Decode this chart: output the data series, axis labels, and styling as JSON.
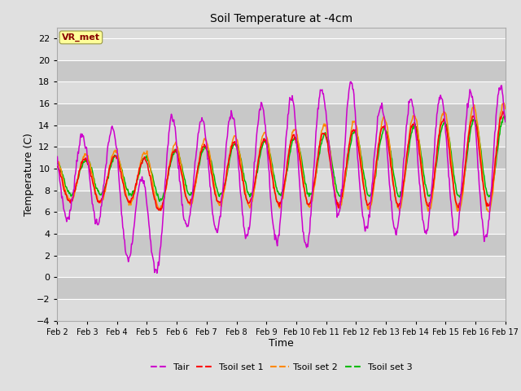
{
  "title": "Soil Temperature at -4cm",
  "xlabel": "Time",
  "ylabel": "Temperature (C)",
  "ylim": [
    -4,
    23
  ],
  "yticks": [
    -4,
    -2,
    0,
    2,
    4,
    6,
    8,
    10,
    12,
    14,
    16,
    18,
    20,
    22
  ],
  "x_labels": [
    "Feb 2",
    "Feb 3",
    "Feb 4",
    "Feb 5",
    "Feb 6",
    "Feb 7",
    "Feb 8",
    "Feb 9",
    "Feb 10",
    "Feb 11",
    "Feb 12",
    "Feb 13",
    "Feb 14",
    "Feb 15",
    "Feb 16",
    "Feb 17"
  ],
  "annotation_text": "VR_met",
  "annotation_bg": "#FFFF99",
  "annotation_fg": "#880000",
  "colors": {
    "Tair": "#CC00CC",
    "Tsoil1": "#FF0000",
    "Tsoil2": "#FF8800",
    "Tsoil3": "#00BB00"
  },
  "legend_labels": [
    "Tair",
    "Tsoil set 1",
    "Tsoil set 2",
    "Tsoil set 3"
  ],
  "fig_bg": "#E0E0E0",
  "plot_bg_light": "#DCDCDC",
  "plot_bg_dark": "#C8C8C8",
  "grid_color": "#FFFFFF"
}
